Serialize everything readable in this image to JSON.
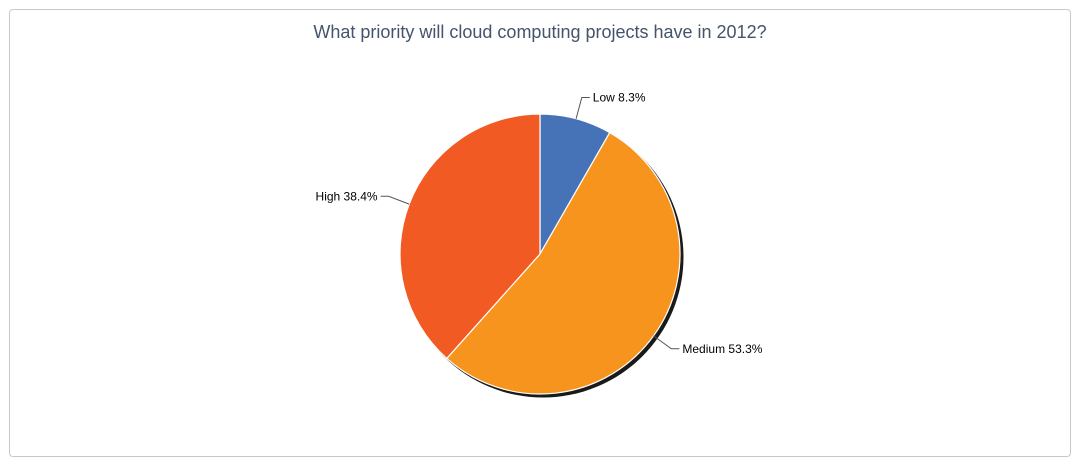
{
  "chart_data": {
    "type": "pie",
    "title": "What priority will cloud computing projects have in 2012?",
    "slices": [
      {
        "label": "Low",
        "value": 8.3,
        "display": "8.3%",
        "color": "#4672b8"
      },
      {
        "label": "Medium",
        "value": 53.3,
        "display": "53.3%",
        "color": "#f7941e"
      },
      {
        "label": "High",
        "value": 38.4,
        "display": "38.4%",
        "color": "#f15a22"
      }
    ],
    "start": "12 o'clock, clockwise",
    "legend": "none",
    "data_labels": "outside with leader lines"
  }
}
